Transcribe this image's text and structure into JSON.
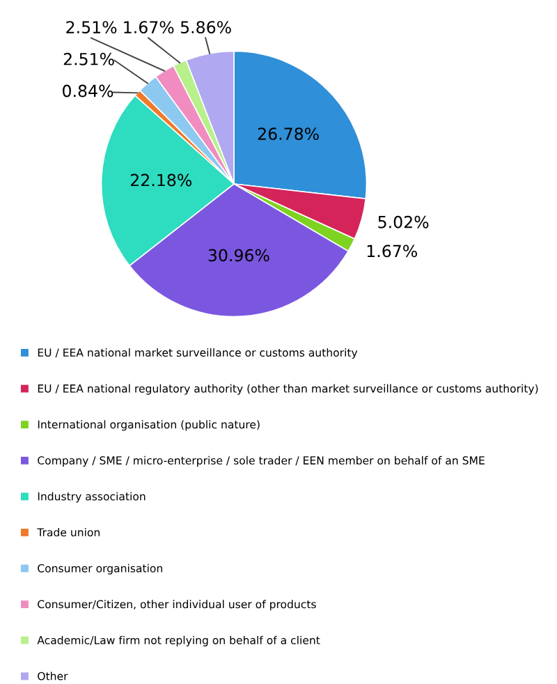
{
  "chart_data": {
    "type": "pie",
    "legend": "bottom",
    "categories": [
      "EU / EEA national market surveillance or customs authority",
      "EU / EEA national regulatory authority (other than market surveillance or customs authority)",
      "International organisation (public nature)",
      "Company / SME / micro-enterprise / sole trader / EEN member on behalf of an SME",
      "Industry association",
      "Trade union",
      "Consumer organisation",
      "Consumer/Citizen, other individual user of products",
      "Academic/Law firm not replying on behalf of a client",
      "Other"
    ],
    "values": [
      26.78,
      5.02,
      1.67,
      30.96,
      22.18,
      0.84,
      2.51,
      2.51,
      1.67,
      5.86
    ],
    "value_labels": [
      "26.78%",
      "5.02%",
      "1.67%",
      "30.96%",
      "22.18%",
      "0.84%",
      "2.51%",
      "2.51%",
      "1.67%",
      "5.86%"
    ],
    "colors": [
      "#2f8fd8",
      "#d5245a",
      "#7ed321",
      "#7b57e0",
      "#2edcc0",
      "#f07a2a",
      "#8cc8f0",
      "#f08cc0",
      "#b8f08c",
      "#b0a8f0"
    ]
  }
}
